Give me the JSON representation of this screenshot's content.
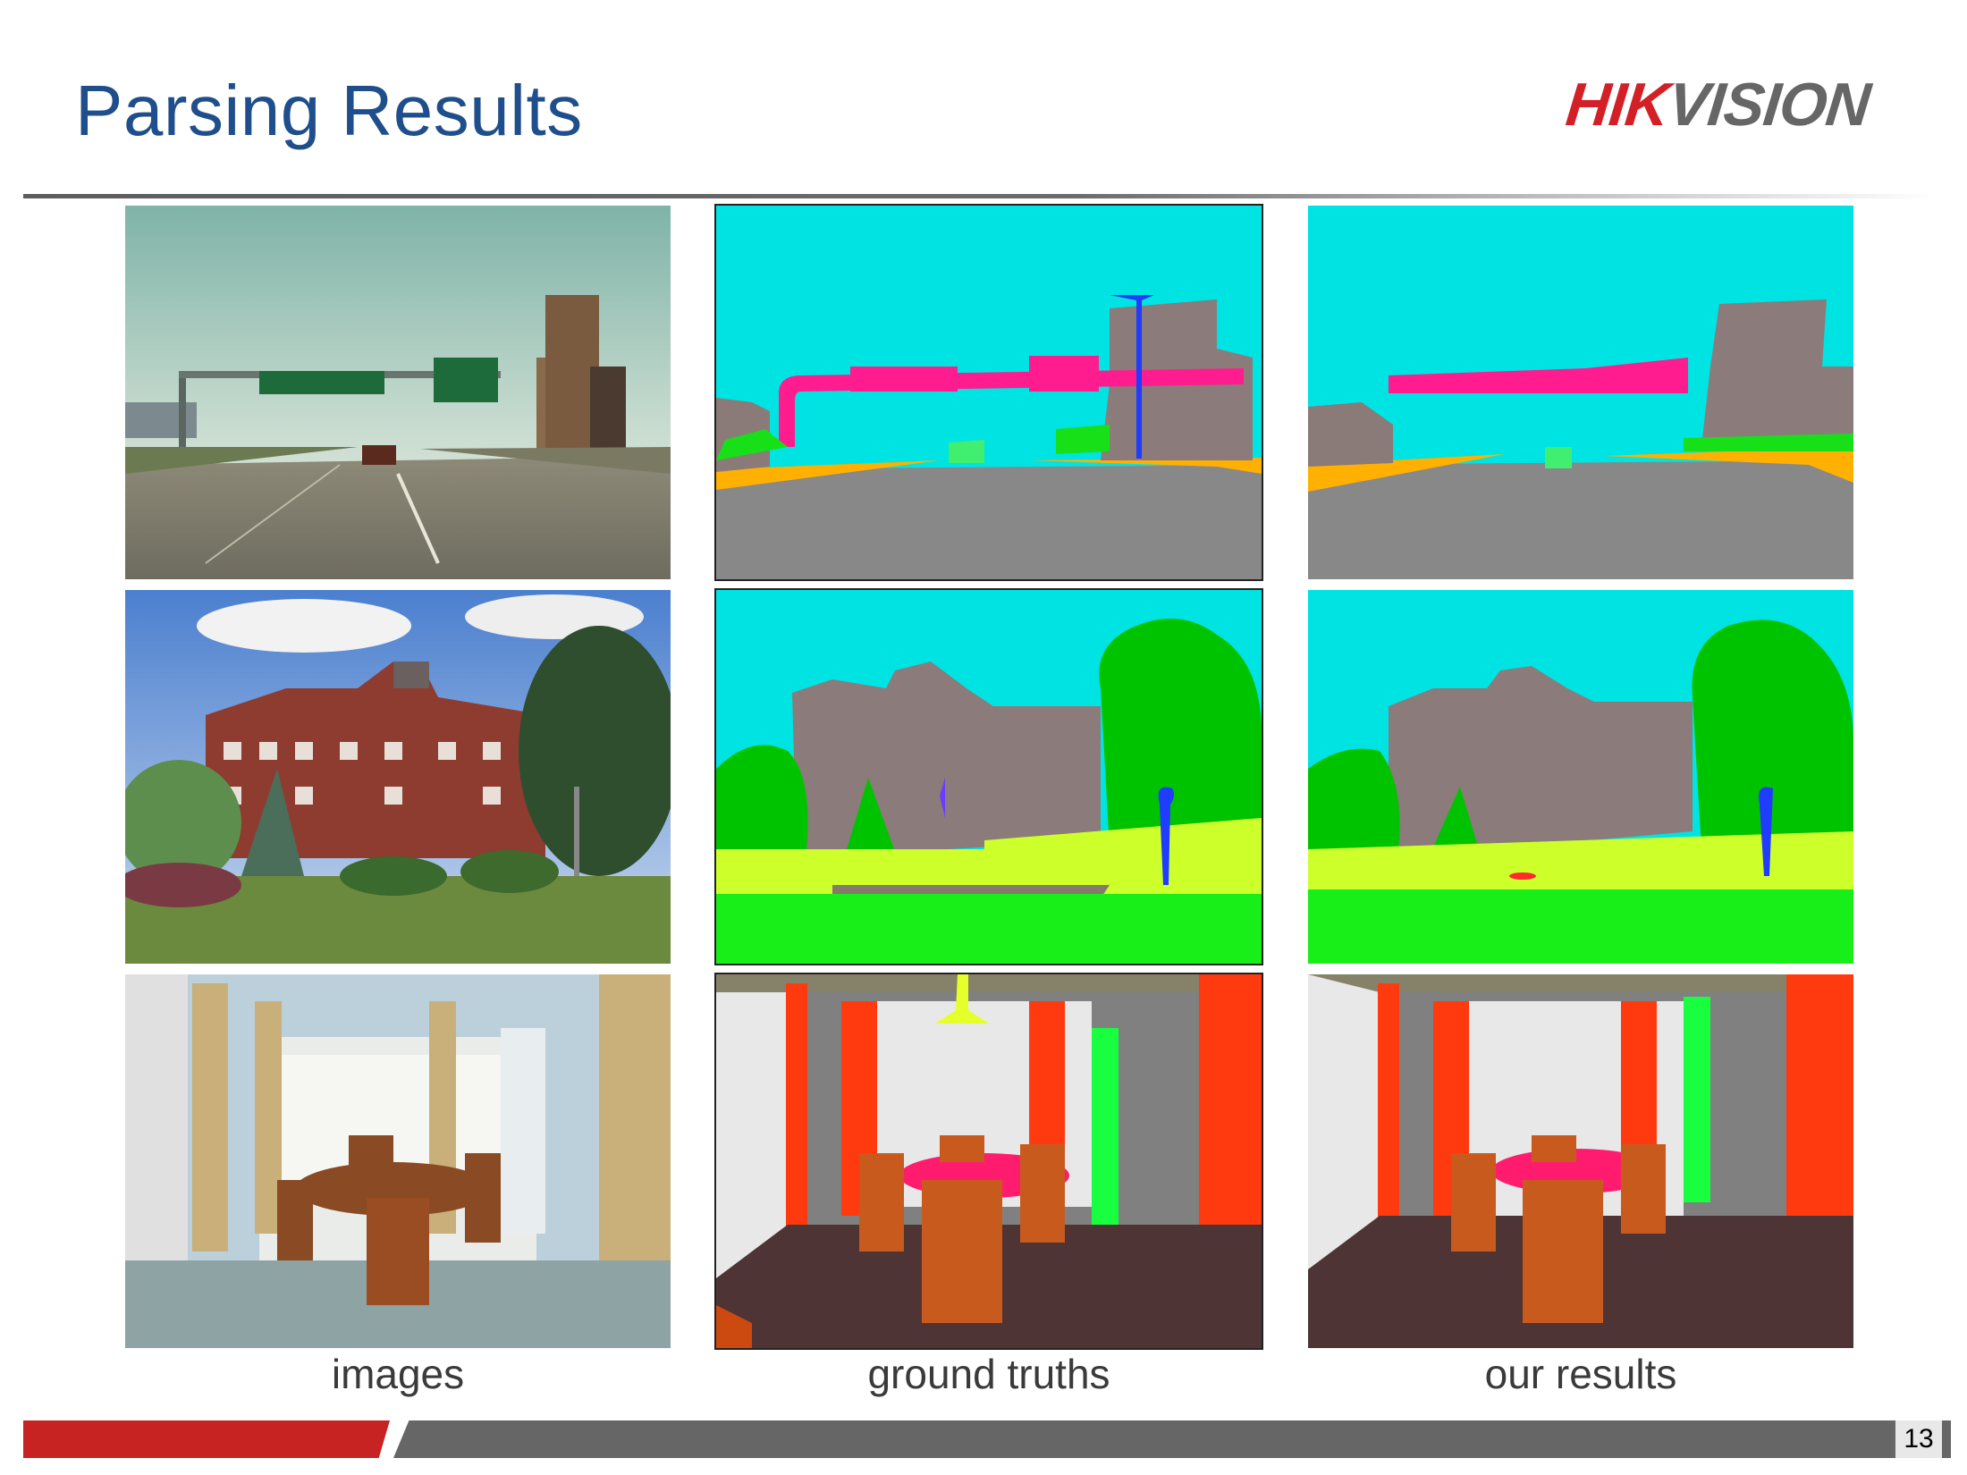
{
  "slide": {
    "title": "Parsing Results",
    "page_number": "13"
  },
  "logo": {
    "part1": "HIK",
    "part2": "VISION",
    "colors": {
      "hik": "#d32027",
      "vision": "#666666"
    }
  },
  "columns": [
    {
      "label": "images"
    },
    {
      "label": "ground truths"
    },
    {
      "label": "our results"
    }
  ],
  "rows": [
    {
      "scene": "highway"
    },
    {
      "scene": "campus building"
    },
    {
      "scene": "dining room"
    }
  ],
  "theme": {
    "title_color": "#1f4e8c",
    "footer_red": "#c62322",
    "footer_gray": "#666666"
  }
}
